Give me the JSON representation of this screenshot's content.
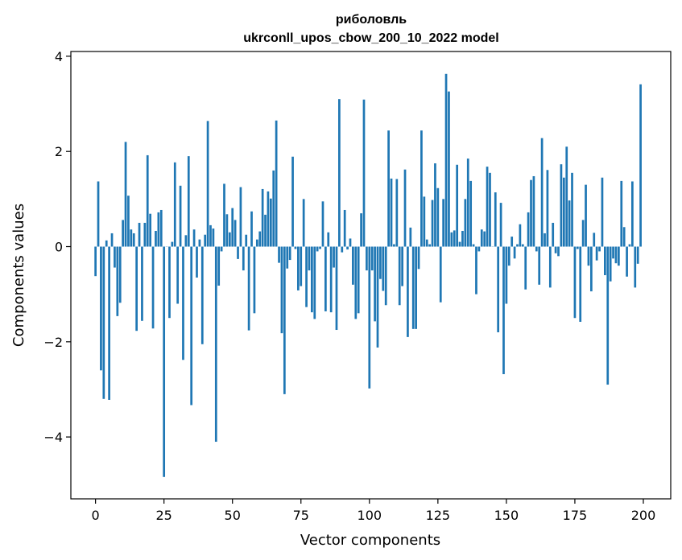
{
  "chart_data": {
    "type": "bar",
    "title_line1": "риболовль",
    "title_line2": "ukrconll_upos_cbow_200_10_2022 model",
    "xlabel": "Vector components",
    "ylabel": "Components values",
    "xlim": [
      -9,
      210
    ],
    "ylim": [
      -5.3,
      4.1
    ],
    "xticks": [
      0,
      25,
      50,
      75,
      100,
      125,
      150,
      175,
      200
    ],
    "xtick_labels": [
      "0",
      "25",
      "50",
      "75",
      "100",
      "125",
      "150",
      "175",
      "200"
    ],
    "yticks": [
      -4,
      -2,
      0,
      2,
      4
    ],
    "ytick_labels": [
      "−4",
      "−2",
      "0",
      "2",
      "4"
    ],
    "grid": false,
    "color": "#1f77b4",
    "values": [
      -0.62,
      1.37,
      -2.6,
      -3.2,
      0.13,
      -3.22,
      0.28,
      -0.44,
      -1.46,
      -1.18,
      0.56,
      2.2,
      1.07,
      0.36,
      0.28,
      -1.77,
      0.5,
      -1.56,
      0.5,
      1.92,
      0.69,
      -1.72,
      0.33,
      0.72,
      0.77,
      -4.84,
      0.0,
      -1.5,
      0.1,
      1.77,
      -1.2,
      1.28,
      -2.38,
      0.24,
      1.9,
      -3.33,
      0.36,
      -0.65,
      0.15,
      -2.05,
      0.25,
      2.64,
      0.45,
      0.38,
      -4.1,
      -0.82,
      -0.1,
      1.32,
      0.68,
      0.3,
      0.81,
      0.56,
      -0.26,
      1.25,
      -0.5,
      0.25,
      -1.76,
      0.74,
      -1.4,
      0.15,
      0.32,
      1.21,
      0.67,
      1.16,
      1.01,
      1.6,
      2.65,
      -0.34,
      -1.82,
      -3.1,
      -0.46,
      -0.28,
      1.89,
      -0.05,
      -0.92,
      -0.83,
      1.0,
      -1.27,
      -0.5,
      -1.38,
      -1.52,
      -0.1,
      -0.05,
      0.95,
      -1.36,
      0.3,
      -1.38,
      -0.44,
      -1.75,
      3.1,
      -0.12,
      0.77,
      -0.06,
      0.17,
      -0.8,
      -1.52,
      -1.4,
      0.7,
      3.09,
      -0.5,
      -2.98,
      -0.5,
      -1.57,
      -2.12,
      -0.68,
      -0.93,
      -1.23,
      2.44,
      1.43,
      0.05,
      1.42,
      -1.23,
      -0.83,
      1.62,
      -1.9,
      0.4,
      -1.73,
      -1.73,
      -0.47,
      2.44,
      1.05,
      0.15,
      0.05,
      0.98,
      1.75,
      1.23,
      -1.17,
      1.0,
      3.63,
      3.26,
      0.3,
      0.34,
      1.72,
      0.1,
      0.33,
      1.0,
      1.85,
      1.38,
      0.05,
      -1.0,
      -0.1,
      0.36,
      0.32,
      1.68,
      1.55,
      0.0,
      1.14,
      -1.8,
      0.92,
      -2.68,
      -1.2,
      -0.4,
      0.21,
      -0.25,
      0.05,
      0.47,
      0.05,
      -0.9,
      0.72,
      1.4,
      1.48,
      -0.1,
      -0.8,
      2.28,
      0.28,
      1.61,
      -0.86,
      0.5,
      -0.14,
      -0.2,
      1.73,
      1.45,
      2.1,
      0.97,
      1.55,
      -1.5,
      -0.05,
      -1.58,
      0.56,
      1.3,
      -0.4,
      -0.94,
      0.29,
      -0.29,
      -0.1,
      1.45,
      -0.6,
      -2.9,
      -0.73,
      -0.25,
      -0.35,
      -0.4,
      1.38,
      0.41,
      -0.63,
      0.05,
      1.37,
      -0.86,
      -0.36,
      3.41
    ]
  }
}
